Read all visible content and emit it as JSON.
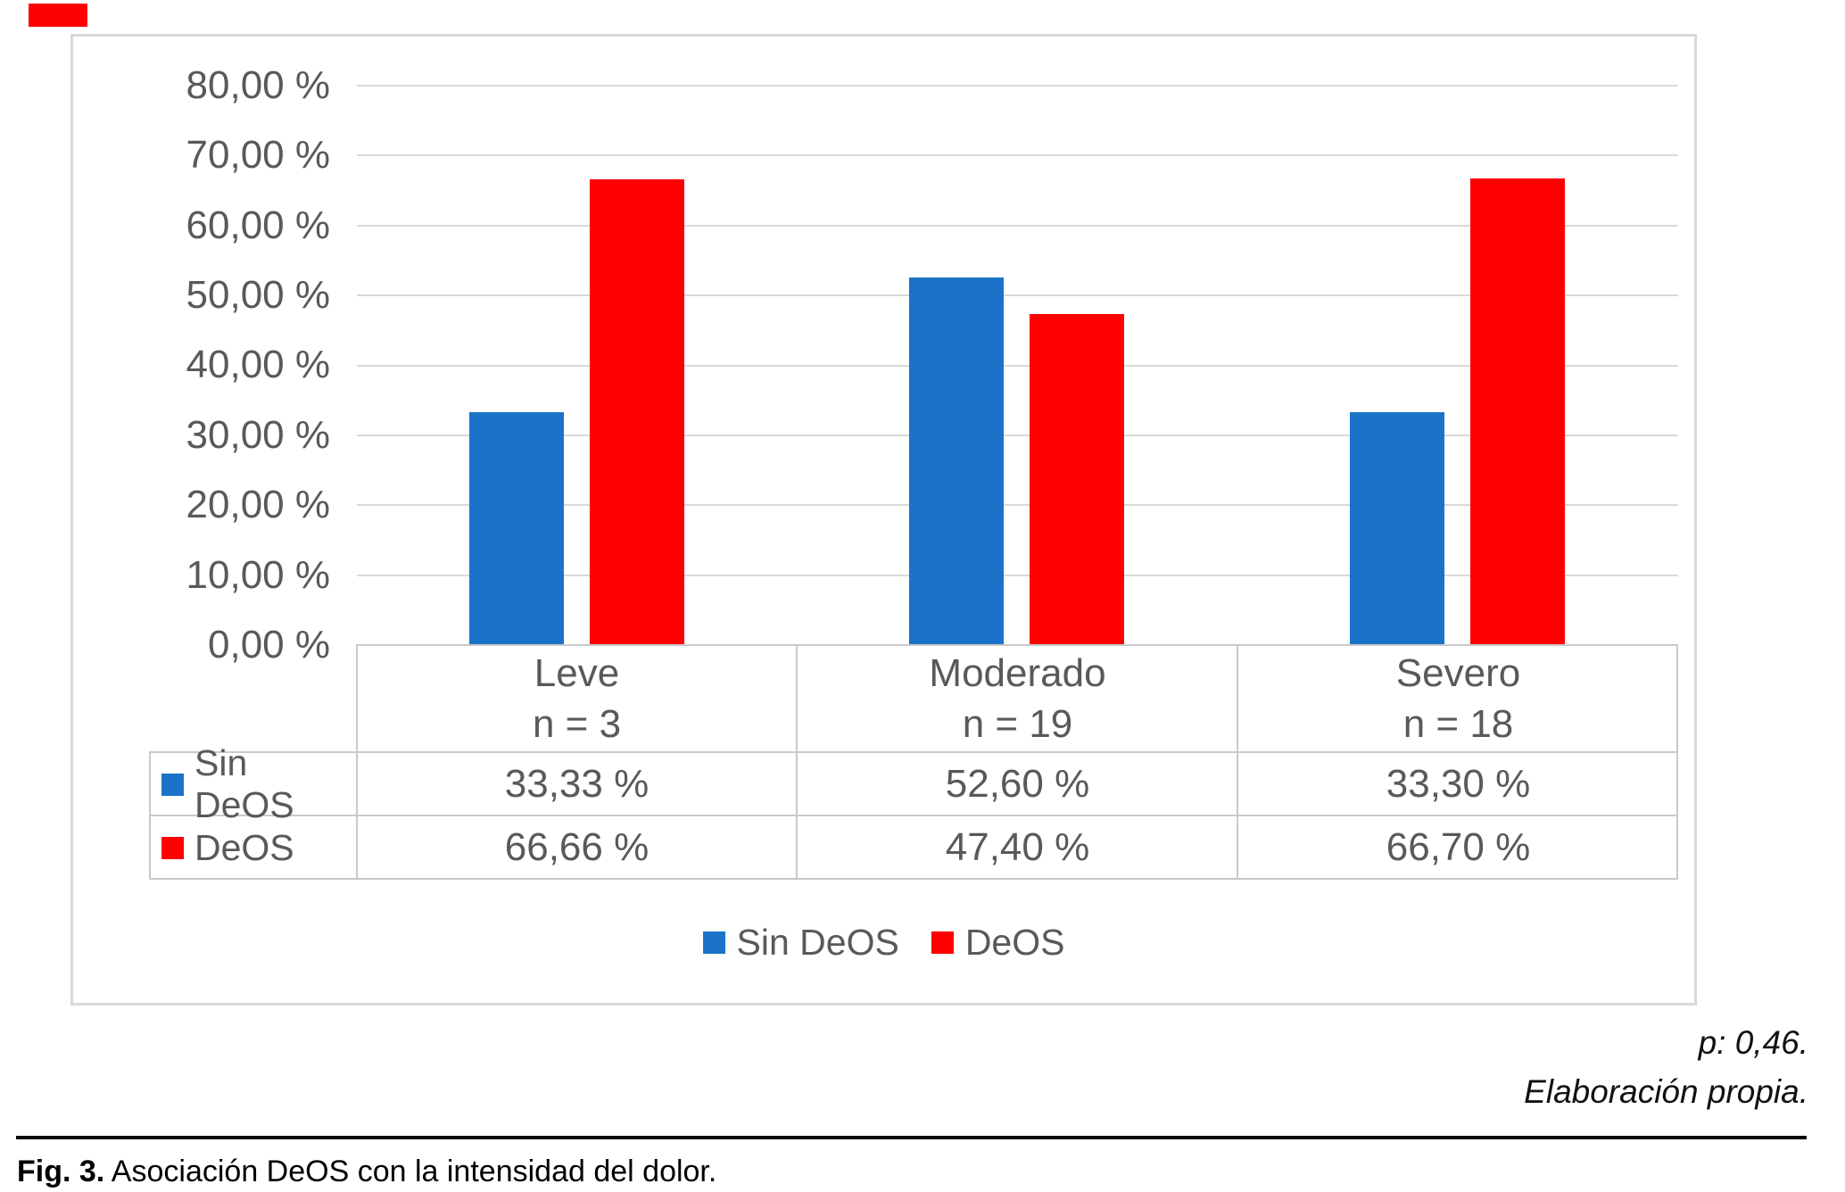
{
  "marker": {
    "color": "#fd0000"
  },
  "chart_data": {
    "type": "bar",
    "title": "",
    "categories": [
      "Leve",
      "Moderado",
      "Severo"
    ],
    "category_n_labels": [
      "n = 3",
      "n = 19",
      "n = 18"
    ],
    "series": [
      {
        "name": "Sin DeOS",
        "color": "#1a73c8",
        "values": [
          33.33,
          52.6,
          33.3
        ],
        "values_display": [
          "33,33 %",
          "52,60 %",
          "33,30 %"
        ]
      },
      {
        "name": "DeOS",
        "color": "#fe0000",
        "values": [
          66.66,
          47.4,
          66.7
        ],
        "values_display": [
          "66,66 %",
          "47,40 %",
          "66,70 %"
        ]
      }
    ],
    "ylim": [
      0,
      80
    ],
    "y_tick_step": 10,
    "y_tick_labels": [
      "80,00 %",
      "70,00 %",
      "60,00 %",
      "50,00 %",
      "40,00 %",
      "30,00 %",
      "20,00 %",
      "10,00 %",
      "0,00 %"
    ],
    "grid": true,
    "legend_position": "bottom",
    "data_table_shown": true
  },
  "legend": {
    "items": [
      {
        "label": "Sin DeOS"
      },
      {
        "label": "DeOS"
      }
    ]
  },
  "notes": {
    "p_value": "p: 0,46.",
    "source": "Elaboración propia."
  },
  "caption": {
    "label": "Fig. 3.",
    "text": " Asociación DeOS con la intensidad del dolor."
  }
}
